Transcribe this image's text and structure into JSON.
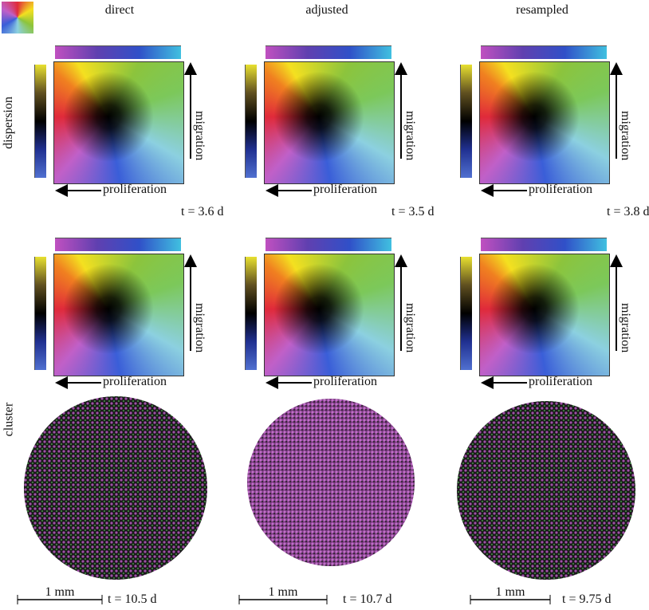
{
  "header": {
    "columns": [
      "direct",
      "adjusted",
      "resampled"
    ]
  },
  "rows": {
    "labels": [
      "dispersion",
      "cluster"
    ]
  },
  "panels": [
    [
      {
        "x_label": "proliferation",
        "y_label": "migration",
        "time": "t = 3.6 d"
      },
      {
        "x_label": "proliferation",
        "y_label": "migration",
        "time": "t = 3.5 d"
      },
      {
        "x_label": "proliferation",
        "y_label": "migration",
        "time": "t = 3.8 d"
      }
    ],
    [
      {
        "x_label": "proliferation",
        "y_label": "migration"
      },
      {
        "x_label": "proliferation",
        "y_label": "migration"
      },
      {
        "x_label": "proliferation",
        "y_label": "migration"
      }
    ]
  ],
  "clusters": [
    {
      "scale_bar": "1 mm",
      "time": "t = 10.5 d"
    },
    {
      "scale_bar": "1 mm",
      "time": "t = 10.7 d"
    },
    {
      "scale_bar": "1 mm",
      "time": "t = 9.75 d"
    }
  ]
}
